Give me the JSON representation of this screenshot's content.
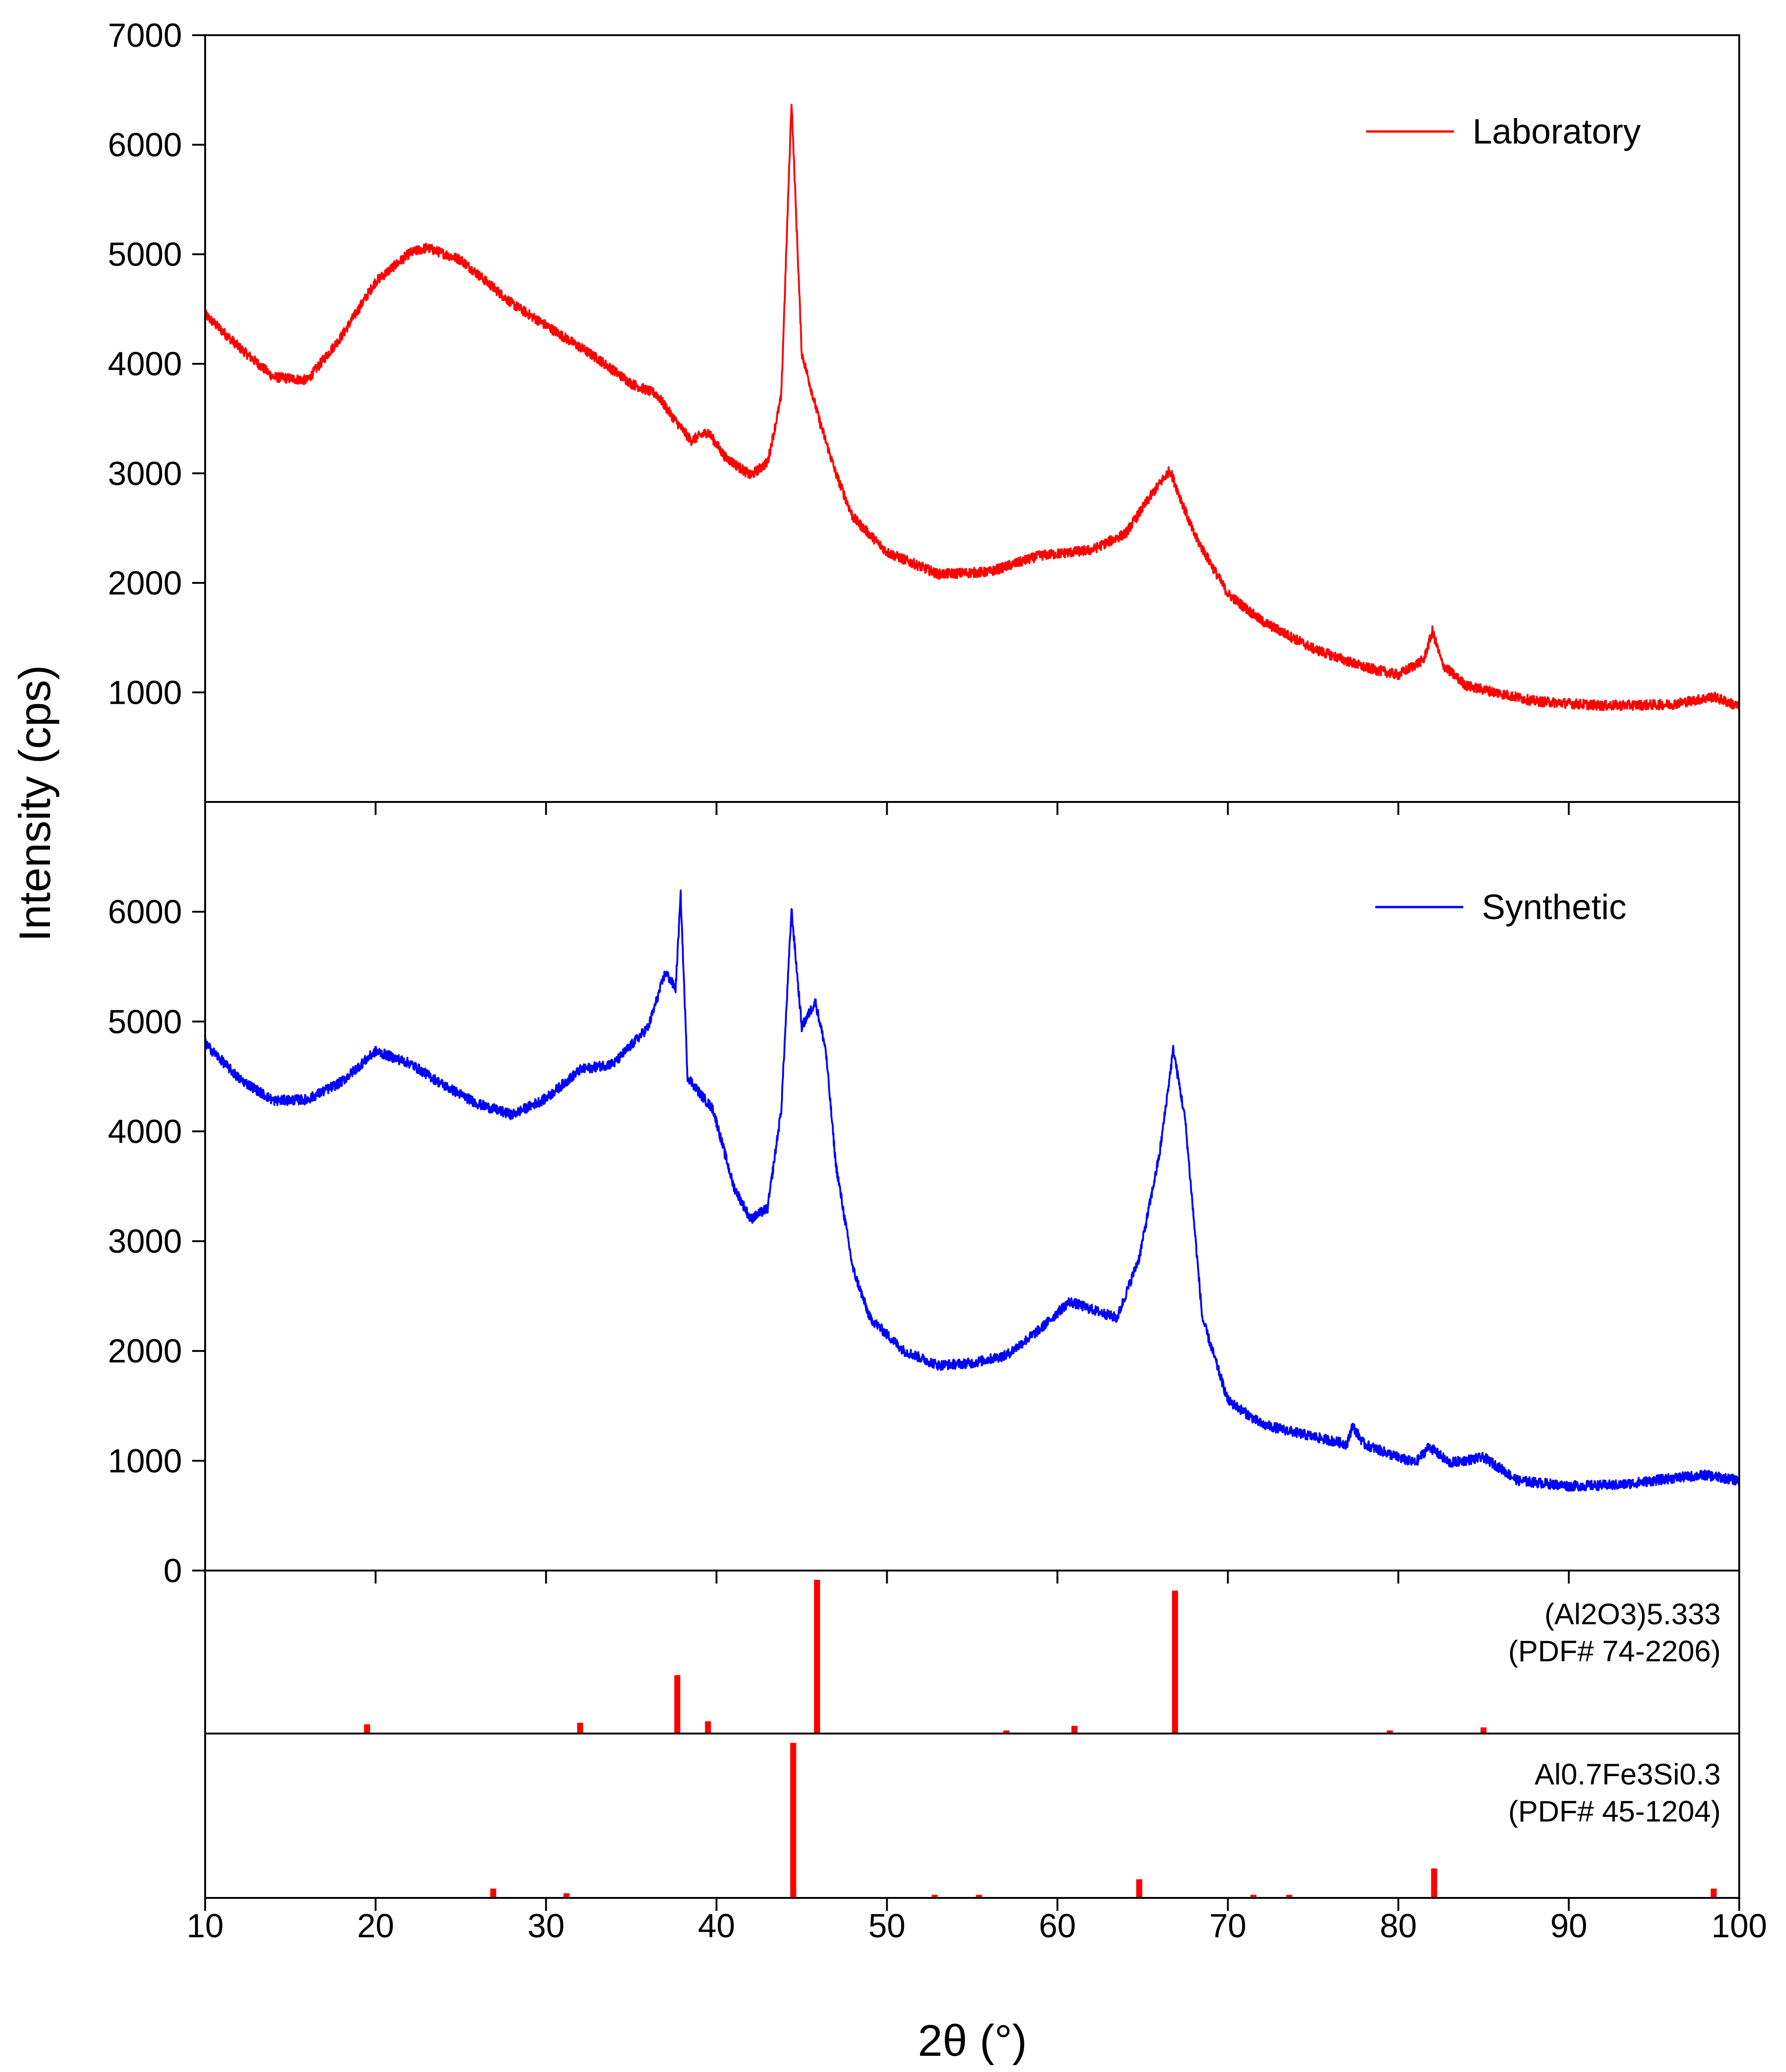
{
  "chart_data": {
    "type": "line",
    "title": "",
    "xlabel": "2θ (°)",
    "ylabel": "Intensity (cps)",
    "xlim": [
      10,
      100
    ],
    "x_ticks": [
      "10",
      "20",
      "30",
      "40",
      "50",
      "60",
      "70",
      "80",
      "90",
      "100"
    ],
    "panels": [
      {
        "name": "laboratory",
        "ylim": [
          0,
          7000
        ],
        "y_ticks": [
          "1000",
          "2000",
          "3000",
          "4000",
          "5000",
          "6000",
          "7000"
        ],
        "legend": "Laboratory",
        "color": "#ff0000",
        "noise": 45,
        "series": [
          [
            10,
            4450
          ],
          [
            12,
            4150
          ],
          [
            14,
            3880
          ],
          [
            16,
            3850
          ],
          [
            18,
            4250
          ],
          [
            20,
            4750
          ],
          [
            22,
            5010
          ],
          [
            23,
            5060
          ],
          [
            25,
            4950
          ],
          [
            28,
            4550
          ],
          [
            30,
            4350
          ],
          [
            33,
            4050
          ],
          [
            35,
            3820
          ],
          [
            36.5,
            3720
          ],
          [
            37.5,
            3500
          ],
          [
            38.5,
            3300
          ],
          [
            39.5,
            3380
          ],
          [
            40.5,
            3150
          ],
          [
            42,
            2980
          ],
          [
            43,
            3100
          ],
          [
            43.8,
            3700
          ],
          [
            44.4,
            6400
          ],
          [
            45,
            4100
          ],
          [
            46,
            3500
          ],
          [
            47,
            3000
          ],
          [
            48,
            2600
          ],
          [
            50,
            2280
          ],
          [
            53,
            2080
          ],
          [
            56,
            2100
          ],
          [
            59,
            2250
          ],
          [
            62,
            2300
          ],
          [
            64,
            2450
          ],
          [
            65.5,
            2800
          ],
          [
            66.6,
            3030
          ],
          [
            68,
            2450
          ],
          [
            70,
            1900
          ],
          [
            72,
            1650
          ],
          [
            75,
            1400
          ],
          [
            78,
            1230
          ],
          [
            80,
            1160
          ],
          [
            81.5,
            1300
          ],
          [
            82,
            1560
          ],
          [
            82.6,
            1250
          ],
          [
            84,
            1060
          ],
          [
            88,
            920
          ],
          [
            92,
            880
          ],
          [
            96,
            890
          ],
          [
            98.5,
            960
          ],
          [
            100,
            870
          ]
        ]
      },
      {
        "name": "synthetic",
        "ylim": [
          0,
          7000
        ],
        "y_ticks": [
          "0",
          "1000",
          "2000",
          "3000",
          "4000",
          "5000",
          "6000"
        ],
        "legend": "Synthetic",
        "color": "#0000ff",
        "noise": 45,
        "series": [
          [
            10,
            4800
          ],
          [
            12,
            4480
          ],
          [
            14,
            4280
          ],
          [
            16,
            4290
          ],
          [
            18,
            4450
          ],
          [
            20,
            4730
          ],
          [
            22,
            4620
          ],
          [
            24,
            4420
          ],
          [
            26,
            4250
          ],
          [
            28,
            4150
          ],
          [
            30,
            4300
          ],
          [
            32,
            4560
          ],
          [
            34,
            4620
          ],
          [
            36,
            4950
          ],
          [
            37,
            5450
          ],
          [
            37.6,
            5300
          ],
          [
            37.9,
            6150
          ],
          [
            38.3,
            4500
          ],
          [
            39,
            4350
          ],
          [
            39.8,
            4200
          ],
          [
            41,
            3500
          ],
          [
            42,
            3200
          ],
          [
            43,
            3300
          ],
          [
            43.8,
            4200
          ],
          [
            44.4,
            6020
          ],
          [
            45,
            4950
          ],
          [
            45.8,
            5180
          ],
          [
            46.4,
            4750
          ],
          [
            47,
            3700
          ],
          [
            48,
            2750
          ],
          [
            49,
            2300
          ],
          [
            51,
            2000
          ],
          [
            53,
            1870
          ],
          [
            55,
            1890
          ],
          [
            57,
            1960
          ],
          [
            59,
            2200
          ],
          [
            60.7,
            2450
          ],
          [
            62,
            2380
          ],
          [
            63.5,
            2300
          ],
          [
            64.8,
            2850
          ],
          [
            66,
            3800
          ],
          [
            66.8,
            4750
          ],
          [
            67.5,
            4100
          ],
          [
            68.5,
            2300
          ],
          [
            70,
            1550
          ],
          [
            72,
            1330
          ],
          [
            75,
            1220
          ],
          [
            77,
            1150
          ],
          [
            77.3,
            1320
          ],
          [
            78,
            1150
          ],
          [
            80,
            1030
          ],
          [
            81,
            980
          ],
          [
            81.8,
            1130
          ],
          [
            83,
            980
          ],
          [
            85,
            1030
          ],
          [
            86,
            930
          ],
          [
            87,
            820
          ],
          [
            90,
            770
          ],
          [
            93,
            780
          ],
          [
            96,
            840
          ],
          [
            98,
            870
          ],
          [
            100,
            820
          ]
        ]
      }
    ],
    "reference_panels": [
      {
        "name": "alumina",
        "label_line1": "(Al2O3)5.333",
        "label_line2": "(PDF#  74-2206)",
        "color": "#ff0000",
        "peaks": [
          [
            19.5,
            6
          ],
          [
            32,
            7
          ],
          [
            37.7,
            38
          ],
          [
            39.5,
            8
          ],
          [
            45.9,
            100
          ],
          [
            57,
            2
          ],
          [
            61,
            5
          ],
          [
            66.9,
            93
          ],
          [
            79.5,
            2
          ],
          [
            85,
            4
          ]
        ]
      },
      {
        "name": "fe3si",
        "label_line1": "Al0.7Fe3Si0.3",
        "label_line2": "(PDF# 45-1204)",
        "color": "#ff0000",
        "peaks": [
          [
            26.9,
            6
          ],
          [
            31.2,
            3
          ],
          [
            44.5,
            100
          ],
          [
            52.8,
            2
          ],
          [
            55.4,
            2
          ],
          [
            64.8,
            12
          ],
          [
            71.5,
            2
          ],
          [
            73.6,
            2
          ],
          [
            82.1,
            19
          ],
          [
            98.5,
            6
          ]
        ]
      }
    ]
  }
}
